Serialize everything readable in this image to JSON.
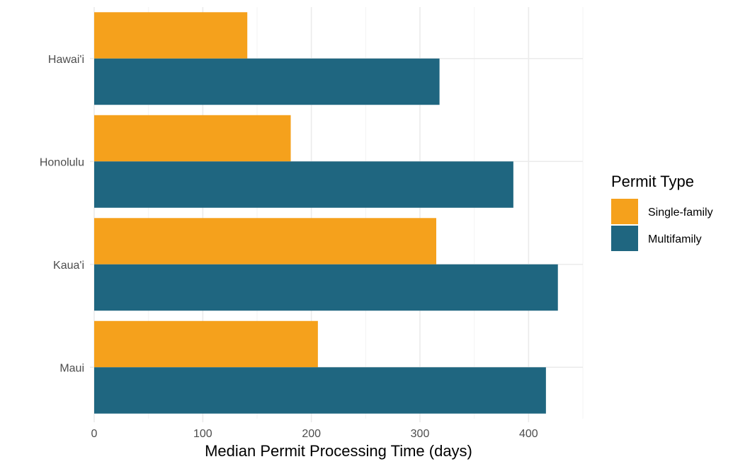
{
  "chart_data": {
    "type": "bar",
    "orientation": "horizontal",
    "categories": [
      "Hawai'i",
      "Honolulu",
      "Kaua'i",
      "Maui"
    ],
    "series": [
      {
        "name": "Single-family",
        "values": [
          141,
          181,
          315,
          206
        ],
        "color": "#F5A11C"
      },
      {
        "name": "Multifamily",
        "values": [
          318,
          386,
          427,
          416
        ],
        "color": "#1F6680"
      }
    ],
    "title": "",
    "xlabel": "Median Permit Processing Time (days)",
    "ylabel": "",
    "xlim": [
      0,
      450
    ],
    "x_ticks": [
      0,
      100,
      200,
      300,
      400
    ],
    "x_tick_labels": [
      "0",
      "100",
      "200",
      "300",
      "400"
    ],
    "grid": true,
    "legend": {
      "title": "Permit Type",
      "placement": "right",
      "entries": [
        "Single-family",
        "Multifamily"
      ]
    }
  }
}
